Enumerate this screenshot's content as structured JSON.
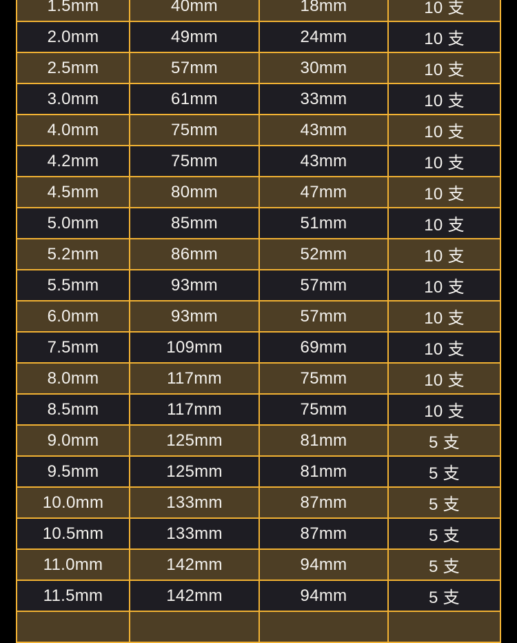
{
  "colors": {
    "border": "#f2b233",
    "row_odd": "#4d3e25",
    "row_even": "#1e1d23",
    "text": "#f4f2ee",
    "background": "#000000"
  },
  "rows": [
    [
      "1.5mm",
      "40mm",
      "18mm",
      "10 支"
    ],
    [
      "2.0mm",
      "49mm",
      "24mm",
      "10 支"
    ],
    [
      "2.5mm",
      "57mm",
      "30mm",
      "10 支"
    ],
    [
      "3.0mm",
      "61mm",
      "33mm",
      "10 支"
    ],
    [
      "4.0mm",
      "75mm",
      "43mm",
      "10 支"
    ],
    [
      "4.2mm",
      "75mm",
      "43mm",
      "10 支"
    ],
    [
      "4.5mm",
      "80mm",
      "47mm",
      "10 支"
    ],
    [
      "5.0mm",
      "85mm",
      "51mm",
      "10 支"
    ],
    [
      "5.2mm",
      "86mm",
      "52mm",
      "10 支"
    ],
    [
      "5.5mm",
      "93mm",
      "57mm",
      "10 支"
    ],
    [
      "6.0mm",
      "93mm",
      "57mm",
      "10 支"
    ],
    [
      "7.5mm",
      "109mm",
      "69mm",
      "10 支"
    ],
    [
      "8.0mm",
      "117mm",
      "75mm",
      "10 支"
    ],
    [
      "8.5mm",
      "117mm",
      "75mm",
      "10 支"
    ],
    [
      "9.0mm",
      "125mm",
      "81mm",
      "5 支"
    ],
    [
      "9.5mm",
      "125mm",
      "81mm",
      "5 支"
    ],
    [
      "10.0mm",
      "133mm",
      "87mm",
      "5 支"
    ],
    [
      "10.5mm",
      "133mm",
      "87mm",
      "5 支"
    ],
    [
      "11.0mm",
      "142mm",
      "94mm",
      "5 支"
    ],
    [
      "11.5mm",
      "142mm",
      "94mm",
      "5 支"
    ],
    [
      "",
      "",
      "",
      ""
    ]
  ]
}
